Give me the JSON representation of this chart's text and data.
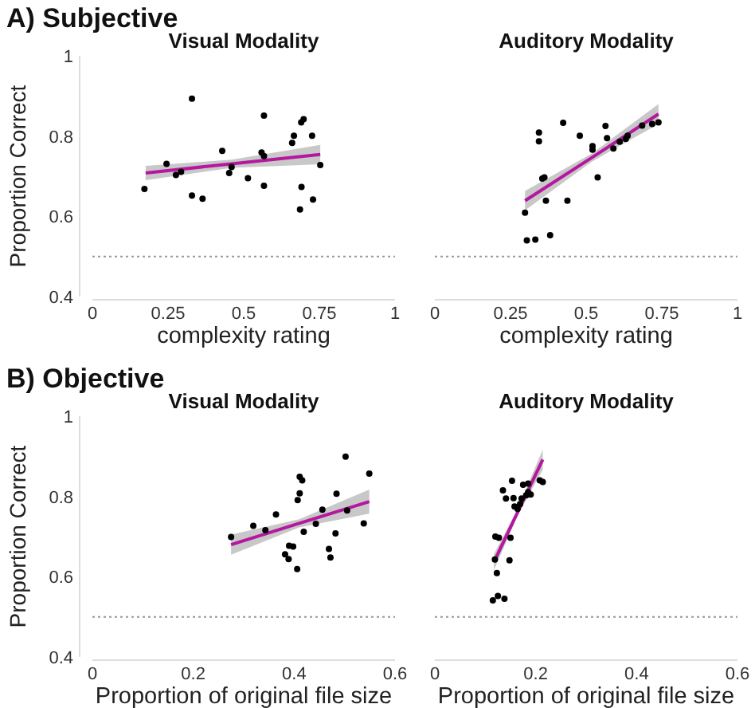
{
  "chart_data": [
    {
      "type": "scatter",
      "title": "Visual Modality",
      "annotations": [
        "A) Subjective"
      ],
      "xlabel": "complexity rating",
      "ylabel": "Proportion Correct",
      "xlim": [
        0,
        1
      ],
      "ylim": [
        0.4,
        1
      ],
      "xticks": [
        0,
        0.25,
        0.5,
        0.75,
        1
      ],
      "yticks": [
        0.4,
        0.6,
        0.8,
        1
      ],
      "grid": false,
      "ref_lines": [
        {
          "axis": "y",
          "value": 0.5,
          "color": "#999999",
          "line_style": "dotted"
        }
      ],
      "series": [
        {
          "marker": "circle",
          "color": "#000000",
          "x": [
            0.172,
            0.245,
            0.276,
            0.293,
            0.329,
            0.329,
            0.364,
            0.429,
            0.452,
            0.46,
            0.514,
            0.559,
            0.567,
            0.567,
            0.567,
            0.66,
            0.666,
            0.69,
            0.698,
            0.691,
            0.686,
            0.726,
            0.729,
            0.753
          ],
          "values": [
            0.668,
            0.731,
            0.703,
            0.711,
            0.893,
            0.652,
            0.644,
            0.763,
            0.708,
            0.723,
            0.695,
            0.759,
            0.75,
            0.851,
            0.676,
            0.783,
            0.801,
            0.834,
            0.842,
            0.673,
            0.617,
            0.801,
            0.642,
            0.728
          ]
        },
        {
          "type": "line",
          "color": "#b5179e",
          "x": [
            0.176,
            0.46,
            0.753
          ],
          "values": [
            0.708,
            0.731,
            0.754
          ],
          "lower": [
            0.69,
            0.721,
            0.73
          ],
          "upper": [
            0.726,
            0.741,
            0.778
          ]
        }
      ]
    },
    {
      "type": "scatter",
      "title": "Auditory Modality",
      "xlabel": "complexity rating",
      "xlim": [
        0,
        1
      ],
      "ylim": [
        0.4,
        1
      ],
      "xticks": [
        0,
        0.25,
        0.5,
        0.75,
        1
      ],
      "yticks": [
        0.4,
        0.6,
        0.8,
        1
      ],
      "tick_labels": "x",
      "grid": false,
      "ref_lines": [
        {
          "axis": "y",
          "value": 0.5,
          "color": "#999999",
          "line_style": "dotted"
        }
      ],
      "series": [
        {
          "marker": "circle",
          "color": "#000000",
          "x": [
            0.298,
            0.304,
            0.332,
            0.344,
            0.344,
            0.355,
            0.362,
            0.367,
            0.381,
            0.424,
            0.438,
            0.479,
            0.521,
            0.521,
            0.538,
            0.564,
            0.569,
            0.59,
            0.611,
            0.631,
            0.637,
            0.685,
            0.718,
            0.739
          ],
          "values": [
            0.609,
            0.54,
            0.542,
            0.809,
            0.787,
            0.694,
            0.697,
            0.639,
            0.553,
            0.833,
            0.639,
            0.801,
            0.775,
            0.766,
            0.697,
            0.825,
            0.795,
            0.769,
            0.786,
            0.793,
            0.801,
            0.826,
            0.83,
            0.834
          ]
        },
        {
          "type": "line",
          "color": "#b5179e",
          "x": [
            0.298,
            0.52,
            0.739
          ],
          "values": [
            0.639,
            0.747,
            0.855
          ],
          "lower": [
            0.615,
            0.737,
            0.83
          ],
          "upper": [
            0.663,
            0.757,
            0.88
          ]
        }
      ]
    },
    {
      "type": "scatter",
      "title": "Visual Modality",
      "annotations": [
        "B) Objective"
      ],
      "xlabel": "Proportion of original file size",
      "ylabel": "Proportion Correct",
      "xlim": [
        0,
        0.6
      ],
      "ylim": [
        0.4,
        1
      ],
      "xticks": [
        0,
        0.2,
        0.4,
        0.6
      ],
      "yticks": [
        0.4,
        0.6,
        0.8,
        1
      ],
      "grid": false,
      "ref_lines": [
        {
          "axis": "y",
          "value": 0.5,
          "color": "#999999",
          "line_style": "dotted"
        }
      ],
      "series": [
        {
          "marker": "circle",
          "color": "#000000",
          "x": [
            0.275,
            0.319,
            0.343,
            0.364,
            0.382,
            0.389,
            0.39,
            0.398,
            0.406,
            0.407,
            0.411,
            0.411,
            0.416,
            0.419,
            0.443,
            0.456,
            0.469,
            0.472,
            0.482,
            0.484,
            0.502,
            0.505,
            0.538,
            0.549
          ],
          "values": [
            0.699,
            0.727,
            0.716,
            0.755,
            0.656,
            0.644,
            0.677,
            0.675,
            0.619,
            0.791,
            0.808,
            0.849,
            0.84,
            0.712,
            0.732,
            0.767,
            0.669,
            0.648,
            0.708,
            0.807,
            0.899,
            0.765,
            0.733,
            0.857
          ]
        },
        {
          "type": "line",
          "color": "#b5179e",
          "x": [
            0.275,
            0.41,
            0.549
          ],
          "values": [
            0.68,
            0.733,
            0.787
          ],
          "lower": [
            0.655,
            0.723,
            0.757
          ],
          "upper": [
            0.705,
            0.743,
            0.817
          ]
        }
      ]
    },
    {
      "type": "scatter",
      "title": "Auditory Modality",
      "xlabel": "Proportion of original file size",
      "xlim": [
        0,
        0.6
      ],
      "ylim": [
        0.4,
        1
      ],
      "xticks": [
        0,
        0.2,
        0.4,
        0.6
      ],
      "yticks": [
        0.4,
        0.6,
        0.8,
        1
      ],
      "tick_labels": "x",
      "grid": false,
      "ref_lines": [
        {
          "axis": "y",
          "value": 0.5,
          "color": "#999999",
          "line_style": "dotted"
        }
      ],
      "series": [
        {
          "marker": "circle",
          "color": "#000000",
          "x": [
            0.115,
            0.125,
            0.138,
            0.123,
            0.119,
            0.12,
            0.127,
            0.15,
            0.148,
            0.135,
            0.141,
            0.153,
            0.156,
            0.158,
            0.164,
            0.169,
            0.172,
            0.175,
            0.181,
            0.185,
            0.185,
            0.19,
            0.208,
            0.214
          ],
          "values": [
            0.541,
            0.552,
            0.545,
            0.609,
            0.643,
            0.7,
            0.697,
            0.697,
            0.641,
            0.815,
            0.795,
            0.839,
            0.796,
            0.775,
            0.769,
            0.781,
            0.795,
            0.829,
            0.803,
            0.832,
            0.811,
            0.805,
            0.84,
            0.836
          ]
        },
        {
          "type": "line",
          "color": "#b5179e",
          "x": [
            0.117,
            0.165,
            0.214
          ],
          "values": [
            0.636,
            0.763,
            0.892
          ],
          "lower": [
            0.616,
            0.755,
            0.867
          ],
          "upper": [
            0.656,
            0.771,
            0.917
          ]
        }
      ]
    }
  ]
}
